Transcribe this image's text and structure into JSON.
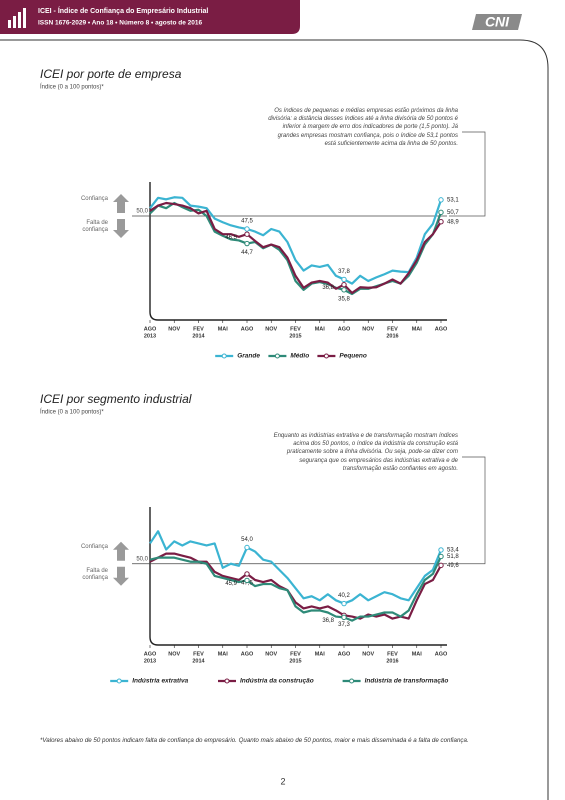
{
  "header": {
    "title": "ICEI - Índice de Confiança do Empresário Industrial",
    "issn": "ISSN 1676-2029 • Ano 18 • Número 8 • agosto de 2016",
    "logo": "CNI"
  },
  "chart_data": [
    {
      "type": "line",
      "title": "ICEI por porte de empresa",
      "subtitle": "Índice (0 a 100 pontos)*",
      "annotation": "Os índices de pequenas e médias empresas estão próximos da linha divisória: a distância desses índices até a linha divisória de 50 pontos é inferior à margem de erro dos indicadores de porte (1,5 ponto). Já grandes empresas mostram confiança, pois o índice de 53,1 pontos está suficientemente acima da linha de 50 pontos.",
      "confidence_label": "Confiança",
      "no_confidence_label": "Falta de confiança",
      "reference_line": {
        "value": 50,
        "label": "50,0"
      },
      "ylim": [
        30,
        55
      ],
      "categories": [
        "AGO",
        null,
        null,
        "NOV",
        null,
        null,
        "FEV",
        null,
        null,
        "MAI",
        null,
        null,
        "AGO",
        null,
        null,
        "NOV",
        null,
        null,
        "FEV",
        null,
        null,
        "MAI",
        null,
        null,
        "AGO",
        null,
        null,
        "NOV",
        null,
        null,
        "FEV",
        null,
        null,
        "MAI",
        null,
        null,
        "AGO"
      ],
      "x_sublabels": [
        "2013",
        null,
        null,
        null,
        null,
        null,
        "2014",
        null,
        null,
        null,
        null,
        null,
        null,
        null,
        null,
        null,
        null,
        null,
        "2015",
        null,
        null,
        null,
        null,
        null,
        null,
        null,
        null,
        null,
        null,
        null,
        "2016",
        null,
        null,
        null,
        null,
        null,
        null
      ],
      "series": [
        {
          "name": "Grande",
          "color": "#3bb4d2",
          "values": [
            51.5,
            53.5,
            53.2,
            53.6,
            53.5,
            52.0,
            51.8,
            51.5,
            49.5,
            48.8,
            48.2,
            47.8,
            47.5,
            47.0,
            46.3,
            47.5,
            47.0,
            45.0,
            41.5,
            39.5,
            40.5,
            40.2,
            40.6,
            38.5,
            37.8,
            37.0,
            38.5,
            37.5,
            38.2,
            38.8,
            39.5,
            39.3,
            39.2,
            42.0,
            46.5,
            48.5,
            53.1
          ],
          "value_labels": [
            null,
            null,
            null,
            null,
            null,
            null,
            null,
            null,
            null,
            null,
            null,
            null,
            "47,5",
            null,
            null,
            null,
            null,
            null,
            null,
            null,
            null,
            null,
            null,
            null,
            "37,8",
            null,
            null,
            null,
            null,
            null,
            null,
            null,
            null,
            null,
            null,
            null,
            "53,1"
          ]
        },
        {
          "name": "Médio",
          "color": "#2e8a78",
          "values": [
            50.5,
            52.0,
            51.5,
            52.5,
            51.7,
            51.0,
            51.2,
            50.0,
            47.0,
            46.2,
            45.5,
            45.3,
            44.7,
            45.0,
            43.8,
            44.5,
            43.5,
            41.5,
            37.5,
            35.8,
            37.0,
            37.3,
            36.9,
            36.2,
            35.8,
            35.0,
            36.0,
            36.0,
            36.5,
            37.0,
            37.5,
            37.0,
            38.5,
            41.0,
            44.5,
            46.5,
            50.7
          ],
          "value_labels": [
            null,
            null,
            null,
            null,
            null,
            null,
            null,
            null,
            null,
            null,
            null,
            null,
            "44,7",
            null,
            null,
            null,
            null,
            null,
            null,
            null,
            null,
            null,
            null,
            null,
            "35,8",
            null,
            null,
            null,
            null,
            null,
            null,
            null,
            null,
            null,
            null,
            null,
            "50,7"
          ]
        },
        {
          "name": "Pequeno",
          "color": "#7a1d44",
          "values": [
            51.0,
            52.0,
            52.5,
            52.3,
            52.0,
            51.5,
            50.5,
            51.0,
            47.5,
            46.5,
            46.5,
            46.0,
            46.5,
            45.2,
            44.0,
            44.5,
            44.0,
            42.0,
            38.5,
            36.2,
            37.2,
            37.5,
            37.2,
            36.0,
            36.8,
            35.2,
            36.3,
            36.2,
            36.3,
            37.0,
            37.8,
            37.0,
            39.0,
            41.5,
            45.0,
            46.5,
            48.9
          ],
          "value_labels": [
            null,
            null,
            null,
            null,
            null,
            null,
            null,
            null,
            null,
            null,
            null,
            null,
            "46,5",
            null,
            null,
            null,
            null,
            null,
            null,
            null,
            null,
            null,
            null,
            null,
            "36,8",
            null,
            null,
            null,
            null,
            null,
            null,
            null,
            null,
            null,
            null,
            null,
            "48,9"
          ]
        }
      ]
    },
    {
      "type": "line",
      "title": "ICEI por segmento industrial",
      "subtitle": "Índice (0 a 100 pontos)*",
      "annotation": "Enquanto as indústrias extrativa e de transformação mostram índices acima dos 50 pontos, o índice da indústria da construção está praticamente sobre a linha divisória. Ou seja, pode-se dizer com segurança que os empresários das indústrias extrativa e de transformação estão confiantes em agosto.",
      "confidence_label": "Confiança",
      "no_confidence_label": "Falta de confiança",
      "reference_line": {
        "value": 50,
        "label": "50,0"
      },
      "ylim": [
        30,
        62
      ],
      "categories": [
        "AGO",
        null,
        null,
        "NOV",
        null,
        null,
        "FEV",
        null,
        null,
        "MAI",
        null,
        null,
        "AGO",
        null,
        null,
        "NOV",
        null,
        null,
        "FEV",
        null,
        null,
        "MAI",
        null,
        null,
        "AGO",
        null,
        null,
        "NOV",
        null,
        null,
        "FEV",
        null,
        null,
        "MAI",
        null,
        null,
        "AGO"
      ],
      "x_sublabels": [
        "2013",
        null,
        null,
        null,
        null,
        null,
        "2014",
        null,
        null,
        null,
        null,
        null,
        null,
        null,
        null,
        null,
        null,
        null,
        "2015",
        null,
        null,
        null,
        null,
        null,
        null,
        null,
        null,
        null,
        null,
        null,
        "2016",
        null,
        null,
        null,
        null,
        null,
        null
      ],
      "series": [
        {
          "name": "Indústria extrativa",
          "color": "#3bb4d2",
          "values": [
            55.0,
            58.0,
            53.5,
            55.5,
            54.5,
            55.5,
            55.0,
            54.5,
            55.0,
            49.0,
            50.0,
            49.5,
            54.0,
            53.0,
            51.0,
            50.5,
            48.5,
            46.5,
            44.0,
            41.5,
            42.0,
            41.0,
            42.5,
            41.0,
            40.2,
            41.0,
            42.5,
            41.0,
            42.0,
            43.0,
            42.5,
            41.5,
            41.0,
            44.0,
            47.0,
            48.5,
            53.4
          ],
          "value_labels": [
            null,
            null,
            null,
            null,
            null,
            null,
            null,
            null,
            null,
            null,
            null,
            null,
            "54,0",
            null,
            null,
            null,
            null,
            null,
            null,
            null,
            null,
            null,
            null,
            null,
            "40,2",
            null,
            null,
            null,
            null,
            null,
            null,
            null,
            null,
            null,
            null,
            null,
            "53,4"
          ]
        },
        {
          "name": "Indústria da construção",
          "color": "#7a1d44",
          "values": [
            50.5,
            51.5,
            52.5,
            52.5,
            52.0,
            51.5,
            50.5,
            50.5,
            48.0,
            47.0,
            46.5,
            46.0,
            47.5,
            46.0,
            45.5,
            46.0,
            44.5,
            43.5,
            40.5,
            39.0,
            39.5,
            39.0,
            39.5,
            38.5,
            37.3,
            37.0,
            36.5,
            37.5,
            37.0,
            37.5,
            36.5,
            37.0,
            36.5,
            41.0,
            45.0,
            46.0,
            49.6
          ],
          "value_labels": [
            null,
            null,
            null,
            null,
            null,
            null,
            null,
            null,
            null,
            null,
            null,
            null,
            "47,5",
            null,
            null,
            null,
            null,
            null,
            null,
            null,
            null,
            null,
            null,
            null,
            "37,3",
            null,
            null,
            null,
            null,
            null,
            null,
            null,
            null,
            null,
            null,
            null,
            "49,6"
          ]
        },
        {
          "name": "Indústria de transformação",
          "color": "#2e8a78",
          "values": [
            51.0,
            51.5,
            51.5,
            51.5,
            51.0,
            50.5,
            50.5,
            50.0,
            47.0,
            46.5,
            46.0,
            45.5,
            45.9,
            44.5,
            45.0,
            45.0,
            44.0,
            43.5,
            39.5,
            38.0,
            38.5,
            38.5,
            38.0,
            37.0,
            36.8,
            36.0,
            37.0,
            37.0,
            37.5,
            38.0,
            38.0,
            37.0,
            38.5,
            42.5,
            46.0,
            47.5,
            51.8
          ],
          "value_labels": [
            null,
            null,
            null,
            null,
            null,
            null,
            null,
            null,
            null,
            null,
            null,
            null,
            "45,9",
            null,
            null,
            null,
            null,
            null,
            null,
            null,
            null,
            null,
            null,
            null,
            "36,8",
            null,
            null,
            null,
            null,
            null,
            null,
            null,
            null,
            null,
            null,
            null,
            "51,8"
          ]
        }
      ]
    }
  ],
  "footnote": "*Valores abaixo de 50 pontos indicam falta de confiança do empresário. Quanto mais abaixo de 50 pontos, maior e mais disseminada é a falta de confiança.",
  "page_number": 2
}
